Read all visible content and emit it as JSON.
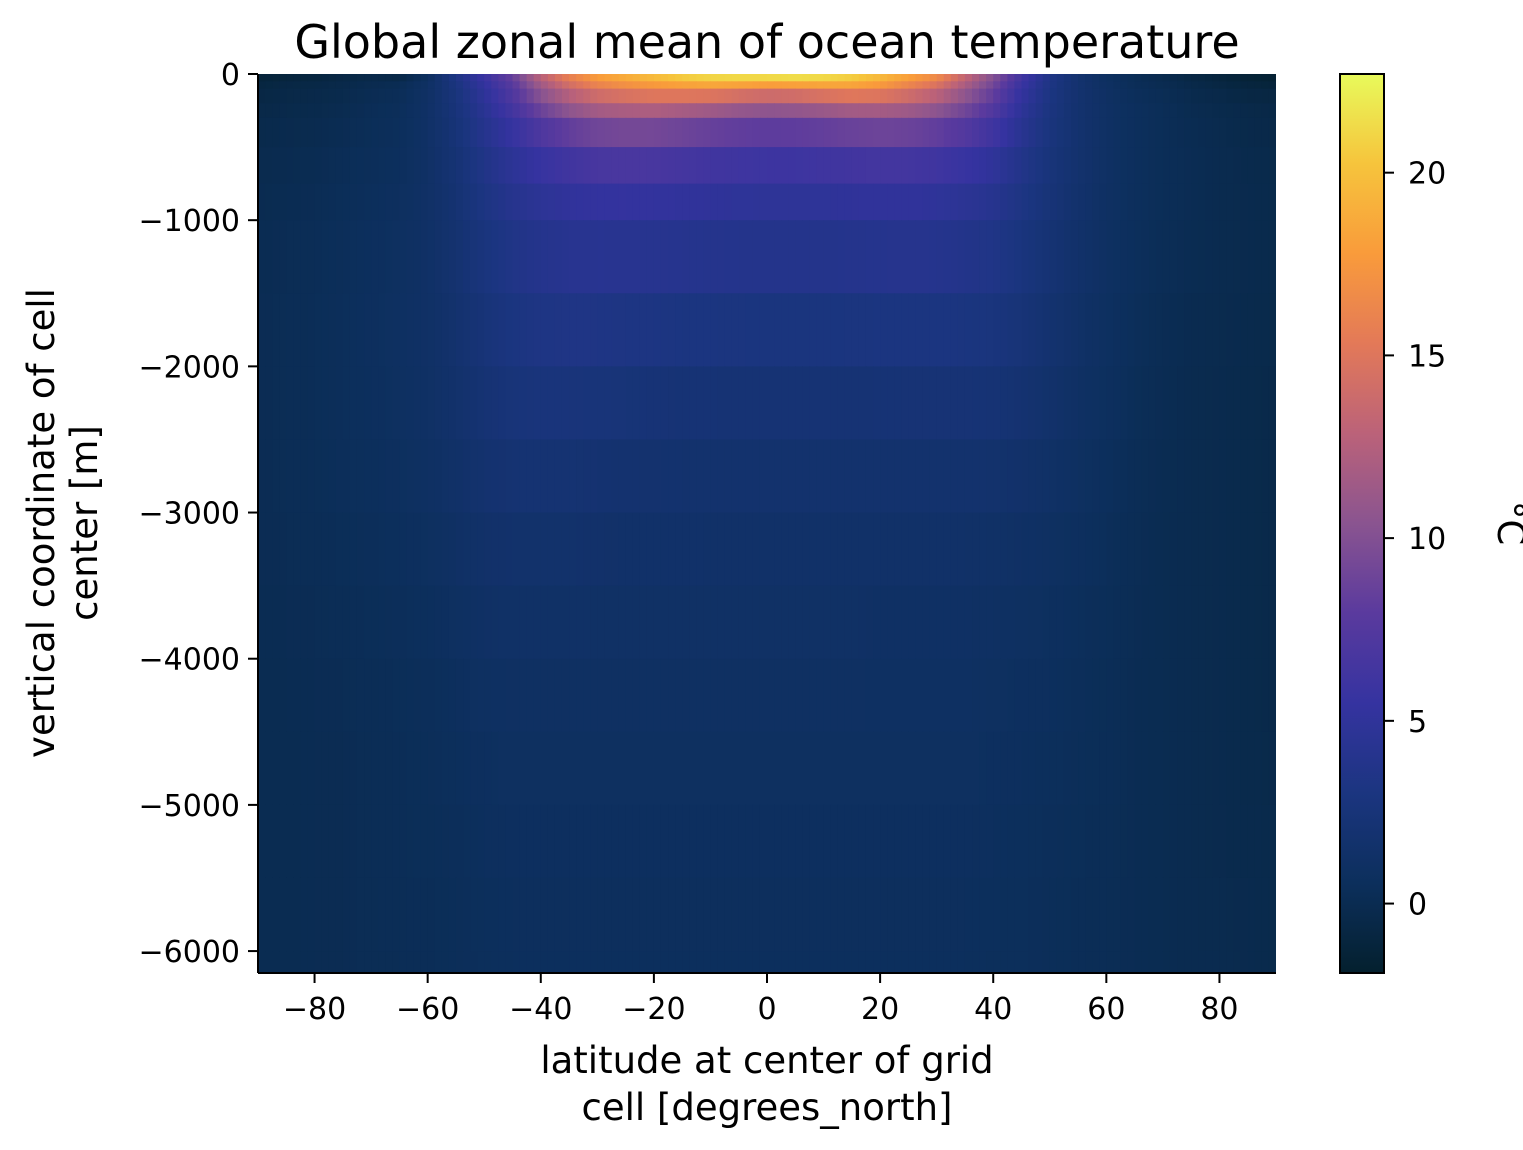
{
  "chart_data": {
    "type": "heatmap",
    "title": "Global zonal mean of ocean temperature",
    "xlabel": [
      "latitude at center of grid",
      "cell [degrees_north]"
    ],
    "ylabel": [
      "vertical coordinate of cell",
      "center [m]"
    ],
    "xlim": [
      -90,
      90
    ],
    "ylim": [
      -6150,
      0
    ],
    "xticks": [
      -80,
      -60,
      -40,
      -20,
      0,
      20,
      40,
      60,
      80
    ],
    "xtick_labels": [
      "−80",
      "−60",
      "−40",
      "−20",
      "0",
      "20",
      "40",
      "60",
      "80"
    ],
    "yticks": [
      0,
      -1000,
      -2000,
      -3000,
      -4000,
      -5000,
      -6000
    ],
    "ytick_labels": [
      "0",
      "−1000",
      "−2000",
      "−3000",
      "−4000",
      "−5000",
      "−6000"
    ],
    "colorbar": {
      "label": "°C",
      "colormap": "thermal",
      "range": [
        -1.9,
        22.7
      ],
      "ticks": [
        0,
        5,
        10,
        15,
        20
      ],
      "tick_labels": [
        "0",
        "5",
        "10",
        "15",
        "20"
      ],
      "colors": [
        "#04202e",
        "#0c2f5c",
        "#1b3580",
        "#3533a0",
        "#5a3a9e",
        "#8a5490",
        "#bb6279",
        "#e37958",
        "#f99b3b",
        "#f6c43c",
        "#e8fa5b"
      ]
    },
    "latitude": [
      -90,
      -85,
      -80,
      -75,
      -70,
      -65,
      -60,
      -55,
      -50,
      -45,
      -40,
      -35,
      -30,
      -25,
      -20,
      -15,
      -10,
      -5,
      0,
      5,
      10,
      15,
      20,
      25,
      30,
      35,
      40,
      45,
      50,
      55,
      60,
      65,
      70,
      75,
      80,
      85,
      90
    ],
    "depth": [
      0,
      -50,
      -100,
      -200,
      -300,
      -500,
      -750,
      -1000,
      -1500,
      -2000,
      -2500,
      -3000,
      -3500,
      -4000,
      -4500,
      -5000,
      -5500,
      -6000,
      -6150
    ],
    "values": [
      [
        -1.5,
        -1.3,
        -1.2,
        -0.8,
        -0.6,
        -1.0,
        0.5,
        3.5,
        6.0,
        9.0,
        13.5,
        16.5,
        18.5,
        19.5,
        20.5,
        21.5,
        22.0,
        22.3,
        22.5,
        22.7,
        22.3,
        21.8,
        20.5,
        19.0,
        17.5,
        14.0,
        10.5,
        6.5,
        3.5,
        1.8,
        0.8,
        0.2,
        -0.3,
        -0.8,
        -1.2,
        -1.6,
        -1.8
      ],
      [
        -1.0,
        -0.8,
        -0.7,
        -0.5,
        -0.2,
        0.0,
        1.0,
        3.0,
        5.5,
        8.0,
        12.0,
        15.0,
        17.0,
        18.0,
        18.8,
        19.5,
        20.0,
        20.0,
        19.8,
        20.0,
        20.0,
        19.5,
        18.5,
        17.0,
        15.5,
        12.5,
        9.5,
        6.0,
        3.3,
        1.8,
        0.9,
        0.3,
        -0.1,
        -0.5,
        -0.9,
        -1.2,
        -1.4
      ],
      [
        -0.8,
        -0.6,
        -0.5,
        -0.3,
        0.0,
        0.2,
        1.1,
        2.8,
        5.0,
        7.5,
        11.0,
        13.5,
        15.2,
        16.0,
        16.5,
        16.8,
        17.0,
        16.5,
        16.0,
        16.2,
        16.8,
        17.2,
        16.8,
        15.5,
        14.0,
        11.5,
        8.8,
        5.5,
        3.2,
        1.8,
        1.0,
        0.4,
        0.1,
        -0.3,
        -0.6,
        -0.9,
        -1.0
      ],
      [
        -0.6,
        -0.4,
        -0.3,
        -0.1,
        0.2,
        0.4,
        1.2,
        2.6,
        4.6,
        6.8,
        9.5,
        11.5,
        12.8,
        13.2,
        13.5,
        13.2,
        12.8,
        12.2,
        11.8,
        12.0,
        12.5,
        13.0,
        13.0,
        12.5,
        11.5,
        9.8,
        7.8,
        5.0,
        3.0,
        1.8,
        1.1,
        0.6,
        0.3,
        -0.1,
        -0.3,
        -0.5,
        -0.6
      ],
      [
        -0.4,
        -0.3,
        -0.2,
        0.0,
        0.3,
        0.5,
        1.2,
        2.5,
        4.2,
        6.0,
        8.0,
        9.6,
        10.5,
        10.8,
        10.8,
        10.4,
        10.0,
        9.6,
        9.4,
        9.5,
        9.8,
        10.2,
        10.4,
        10.2,
        9.6,
        8.4,
        6.8,
        4.6,
        2.9,
        1.8,
        1.1,
        0.6,
        0.3,
        0.0,
        -0.2,
        -0.4,
        -0.5
      ],
      [
        -0.2,
        -0.1,
        0.0,
        0.2,
        0.4,
        0.6,
        1.2,
        2.3,
        3.7,
        5.0,
        6.2,
        7.0,
        7.6,
        7.8,
        7.7,
        7.4,
        7.1,
        6.9,
        6.8,
        6.8,
        7.0,
        7.2,
        7.4,
        7.3,
        7.0,
        6.4,
        5.5,
        4.0,
        2.7,
        1.8,
        1.1,
        0.6,
        0.3,
        0.1,
        -0.1,
        -0.3,
        -0.4
      ],
      [
        -0.1,
        0.0,
        0.1,
        0.3,
        0.5,
        0.7,
        1.2,
        2.1,
        3.3,
        4.3,
        5.0,
        5.5,
        5.8,
        5.9,
        5.8,
        5.6,
        5.4,
        5.3,
        5.2,
        5.2,
        5.3,
        5.4,
        5.5,
        5.5,
        5.3,
        4.9,
        4.4,
        3.4,
        2.5,
        1.7,
        1.1,
        0.6,
        0.3,
        0.1,
        -0.1,
        -0.2,
        -0.3
      ],
      [
        0.0,
        0.1,
        0.2,
        0.4,
        0.6,
        0.8,
        1.2,
        2.0,
        3.0,
        3.8,
        4.3,
        4.6,
        4.8,
        4.8,
        4.7,
        4.6,
        4.5,
        4.4,
        4.4,
        4.4,
        4.4,
        4.5,
        4.6,
        4.6,
        4.5,
        4.2,
        3.9,
        3.1,
        2.3,
        1.6,
        1.0,
        0.6,
        0.3,
        0.1,
        -0.1,
        -0.2,
        -0.3
      ],
      [
        0.1,
        0.2,
        0.3,
        0.5,
        0.7,
        0.9,
        1.2,
        1.8,
        2.6,
        3.2,
        3.6,
        3.8,
        3.8,
        3.7,
        3.6,
        3.5,
        3.4,
        3.4,
        3.3,
        3.3,
        3.3,
        3.4,
        3.4,
        3.5,
        3.5,
        3.3,
        3.1,
        2.6,
        2.0,
        1.4,
        0.9,
        0.5,
        0.2,
        0.0,
        -0.1,
        -0.2,
        -0.3
      ],
      [
        0.1,
        0.2,
        0.3,
        0.5,
        0.7,
        0.9,
        1.2,
        1.7,
        2.3,
        2.8,
        3.0,
        3.0,
        2.9,
        2.8,
        2.7,
        2.6,
        2.6,
        2.5,
        2.5,
        2.5,
        2.5,
        2.5,
        2.6,
        2.6,
        2.6,
        2.6,
        2.5,
        2.2,
        1.7,
        1.2,
        0.8,
        0.4,
        0.1,
        -0.1,
        -0.2,
        -0.3,
        -0.4
      ],
      [
        0.1,
        0.2,
        0.3,
        0.5,
        0.6,
        0.8,
        1.1,
        1.5,
        2.0,
        2.3,
        2.4,
        2.3,
        2.2,
        2.1,
        2.0,
        1.9,
        1.9,
        1.9,
        1.9,
        1.9,
        1.9,
        1.9,
        1.9,
        2.0,
        2.0,
        2.0,
        1.9,
        1.7,
        1.4,
        1.0,
        0.7,
        0.3,
        0.1,
        -0.1,
        -0.2,
        -0.3,
        -0.4
      ],
      [
        0.1,
        0.2,
        0.3,
        0.4,
        0.5,
        0.7,
        0.9,
        1.2,
        1.6,
        1.8,
        1.8,
        1.8,
        1.7,
        1.6,
        1.6,
        1.6,
        1.5,
        1.5,
        1.5,
        1.5,
        1.5,
        1.5,
        1.5,
        1.5,
        1.5,
        1.5,
        1.4,
        1.3,
        1.1,
        0.8,
        0.5,
        0.2,
        0.0,
        -0.1,
        -0.2,
        -0.3,
        -0.4
      ],
      [
        0.1,
        0.1,
        0.2,
        0.3,
        0.4,
        0.5,
        0.7,
        1.0,
        1.3,
        1.4,
        1.4,
        1.4,
        1.3,
        1.3,
        1.3,
        1.3,
        1.3,
        1.3,
        1.3,
        1.3,
        1.3,
        1.3,
        1.2,
        1.2,
        1.2,
        1.2,
        1.1,
        1.0,
        0.8,
        0.6,
        0.4,
        0.2,
        0.0,
        -0.1,
        -0.2,
        -0.3,
        -0.4
      ],
      [
        0.0,
        0.1,
        0.1,
        0.2,
        0.3,
        0.4,
        0.5,
        0.7,
        1.0,
        1.1,
        1.1,
        1.1,
        1.1,
        1.1,
        1.1,
        1.1,
        1.1,
        1.1,
        1.1,
        1.1,
        1.1,
        1.1,
        1.0,
        1.0,
        1.0,
        1.0,
        0.9,
        0.8,
        0.7,
        0.5,
        0.3,
        0.1,
        0.0,
        -0.1,
        -0.2,
        -0.3,
        -0.4
      ],
      [
        0.0,
        0.0,
        0.1,
        0.1,
        0.2,
        0.3,
        0.4,
        0.6,
        0.8,
        0.9,
        0.9,
        0.9,
        0.9,
        0.9,
        0.9,
        0.9,
        0.9,
        0.9,
        0.9,
        0.9,
        0.9,
        0.9,
        0.9,
        0.9,
        0.9,
        0.9,
        0.8,
        0.7,
        0.6,
        0.4,
        0.3,
        0.1,
        0.0,
        -0.1,
        -0.2,
        -0.3,
        -0.4
      ],
      [
        0.0,
        0.0,
        0.1,
        0.1,
        0.2,
        0.3,
        0.4,
        0.5,
        0.7,
        0.8,
        0.8,
        0.8,
        0.8,
        0.8,
        0.8,
        0.8,
        0.8,
        0.8,
        0.8,
        0.8,
        0.8,
        0.8,
        0.8,
        0.8,
        0.8,
        0.8,
        0.7,
        0.6,
        0.5,
        0.4,
        0.3,
        0.1,
        0.0,
        -0.1,
        -0.2,
        -0.3,
        -0.3
      ],
      [
        0.0,
        0.0,
        0.1,
        0.1,
        0.2,
        0.3,
        0.3,
        0.4,
        0.6,
        0.7,
        0.7,
        0.7,
        0.7,
        0.7,
        0.7,
        0.7,
        0.7,
        0.7,
        0.7,
        0.7,
        0.7,
        0.7,
        0.7,
        0.7,
        0.7,
        0.7,
        0.6,
        0.5,
        0.4,
        0.3,
        0.2,
        0.1,
        0.0,
        -0.1,
        -0.2,
        -0.2,
        -0.3
      ],
      [
        0.0,
        0.0,
        0.1,
        0.1,
        0.2,
        0.2,
        0.3,
        0.4,
        0.5,
        0.6,
        0.6,
        0.6,
        0.6,
        0.6,
        0.6,
        0.6,
        0.6,
        0.6,
        0.6,
        0.6,
        0.6,
        0.6,
        0.6,
        0.6,
        0.6,
        0.6,
        0.5,
        0.5,
        0.4,
        0.3,
        0.2,
        0.1,
        0.0,
        -0.1,
        -0.1,
        -0.2,
        -0.3
      ],
      [
        0.0,
        0.0,
        0.1,
        0.1,
        0.2,
        0.2,
        0.3,
        0.4,
        0.5,
        0.6,
        0.6,
        0.6,
        0.6,
        0.6,
        0.6,
        0.6,
        0.6,
        0.6,
        0.6,
        0.6,
        0.6,
        0.6,
        0.6,
        0.6,
        0.6,
        0.6,
        0.5,
        0.5,
        0.4,
        0.3,
        0.2,
        0.1,
        0.0,
        -0.1,
        -0.1,
        -0.2,
        -0.3
      ]
    ]
  }
}
